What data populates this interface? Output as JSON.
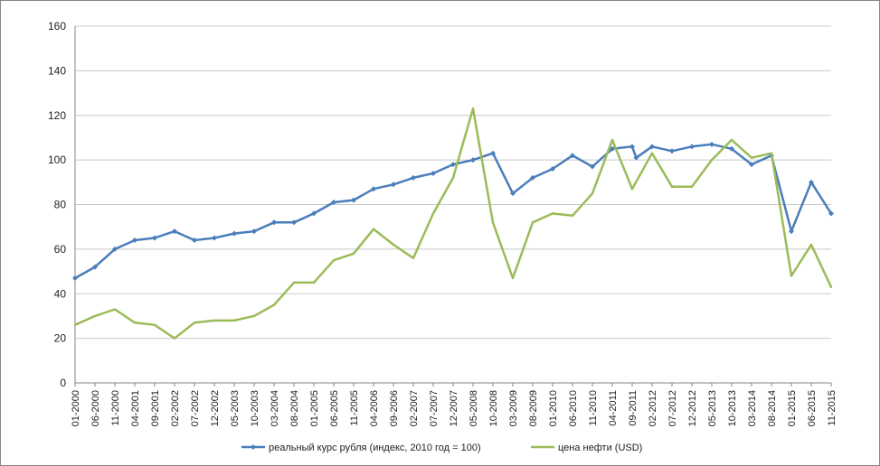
{
  "chart_data": {
    "type": "line",
    "title": "",
    "xlabel": "",
    "ylabel": "",
    "ylim": [
      0,
      160
    ],
    "yticks": [
      0,
      20,
      40,
      60,
      80,
      100,
      120,
      140,
      160
    ],
    "grid": "horizontal",
    "legend_position": "bottom",
    "x_start": "01-2000",
    "x_end": "11-2015",
    "xtick_labels": [
      "01-2000",
      "06-2000",
      "11-2000",
      "04-2001",
      "09-2001",
      "02-2002",
      "07-2002",
      "12-2002",
      "05-2003",
      "10-2003",
      "03-2004",
      "08-2004",
      "01-2005",
      "06-2005",
      "11-2005",
      "04-2006",
      "09-2006",
      "02-2007",
      "07-2007",
      "12-2007",
      "05-2008",
      "10-2008",
      "03-2009",
      "08-2009",
      "01-2010",
      "06-2010",
      "11-2010",
      "04-2011",
      "09-2011",
      "02-2012",
      "07-2012",
      "12-2012",
      "05-2013",
      "10-2013",
      "03-2014",
      "08-2014",
      "01-2015",
      "06-2015",
      "11-2015"
    ],
    "series": [
      {
        "name": "реальный курс рубля (индекс, 2010 год = 100)",
        "color": "#4a7ebb",
        "marker": "diamond",
        "points": [
          [
            "01-2000",
            47
          ],
          [
            "06-2000",
            52
          ],
          [
            "11-2000",
            60
          ],
          [
            "04-2001",
            64
          ],
          [
            "09-2001",
            65
          ],
          [
            "02-2002",
            68
          ],
          [
            "07-2002",
            64
          ],
          [
            "12-2002",
            65
          ],
          [
            "05-2003",
            67
          ],
          [
            "10-2003",
            68
          ],
          [
            "03-2004",
            72
          ],
          [
            "08-2004",
            72
          ],
          [
            "01-2005",
            76
          ],
          [
            "06-2005",
            81
          ],
          [
            "11-2005",
            82
          ],
          [
            "04-2006",
            87
          ],
          [
            "09-2006",
            89
          ],
          [
            "02-2007",
            92
          ],
          [
            "07-2007",
            94
          ],
          [
            "12-2007",
            98
          ],
          [
            "05-2008",
            100
          ],
          [
            "10-2008",
            103
          ],
          [
            "03-2009",
            85
          ],
          [
            "08-2009",
            92
          ],
          [
            "01-2010",
            96
          ],
          [
            "06-2010",
            102
          ],
          [
            "11-2010",
            97
          ],
          [
            "04-2011",
            105
          ],
          [
            "09-2011",
            106
          ],
          [
            "10-2011",
            101
          ],
          [
            "02-2012",
            106
          ],
          [
            "07-2012",
            104
          ],
          [
            "12-2012",
            106
          ],
          [
            "05-2013",
            107
          ],
          [
            "10-2013",
            105
          ],
          [
            "03-2014",
            98
          ],
          [
            "08-2014",
            102
          ],
          [
            "01-2015",
            68
          ],
          [
            "06-2015",
            90
          ],
          [
            "11-2015",
            76
          ]
        ]
      },
      {
        "name": "цена нефти (USD)",
        "color": "#9bbb59",
        "marker": "none",
        "points": [
          [
            "01-2000",
            26
          ],
          [
            "06-2000",
            30
          ],
          [
            "11-2000",
            33
          ],
          [
            "04-2001",
            27
          ],
          [
            "09-2001",
            26
          ],
          [
            "02-2002",
            20
          ],
          [
            "07-2002",
            27
          ],
          [
            "12-2002",
            28
          ],
          [
            "05-2003",
            28
          ],
          [
            "10-2003",
            30
          ],
          [
            "03-2004",
            35
          ],
          [
            "08-2004",
            45
          ],
          [
            "01-2005",
            45
          ],
          [
            "06-2005",
            55
          ],
          [
            "11-2005",
            58
          ],
          [
            "04-2006",
            69
          ],
          [
            "09-2006",
            62
          ],
          [
            "02-2007",
            56
          ],
          [
            "07-2007",
            76
          ],
          [
            "12-2007",
            92
          ],
          [
            "05-2008",
            123
          ],
          [
            "10-2008",
            72
          ],
          [
            "03-2009",
            47
          ],
          [
            "08-2009",
            72
          ],
          [
            "01-2010",
            76
          ],
          [
            "06-2010",
            75
          ],
          [
            "11-2010",
            85
          ],
          [
            "04-2011",
            109
          ],
          [
            "09-2011",
            87
          ],
          [
            "02-2012",
            103
          ],
          [
            "07-2012",
            88
          ],
          [
            "12-2012",
            88
          ],
          [
            "05-2013",
            100
          ],
          [
            "10-2013",
            109
          ],
          [
            "03-2014",
            101
          ],
          [
            "08-2014",
            103
          ],
          [
            "01-2015",
            48
          ],
          [
            "06-2015",
            62
          ],
          [
            "11-2015",
            43
          ]
        ]
      }
    ]
  }
}
